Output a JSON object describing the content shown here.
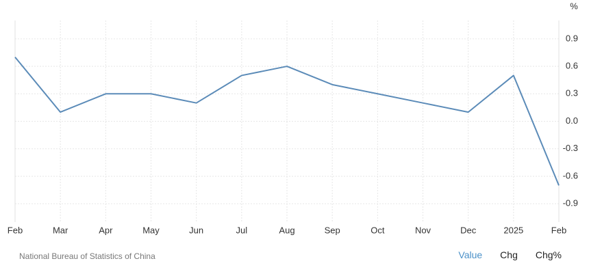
{
  "chart_data": {
    "type": "line",
    "categories": [
      "Feb",
      "Mar",
      "Apr",
      "May",
      "Jun",
      "Jul",
      "Aug",
      "Sep",
      "Oct",
      "Nov",
      "Dec",
      "2025",
      "Feb"
    ],
    "values": [
      0.7,
      0.1,
      0.3,
      0.3,
      0.2,
      0.5,
      0.6,
      0.4,
      0.3,
      0.2,
      0.1,
      0.5,
      -0.7
    ],
    "color": "#5b8bb8",
    "y_unit": "%",
    "ylim": [
      -1.1,
      1.1
    ],
    "yticks": [
      0.9,
      0.6,
      0.3,
      {
        "value": 0,
        "label": "0.0"
      },
      -0.3,
      -0.6,
      -0.9
    ],
    "grid": true
  },
  "footer": {
    "source": "National Bureau of Statistics of China",
    "buttons": [
      "Value",
      "Chg",
      "Chg%"
    ]
  }
}
